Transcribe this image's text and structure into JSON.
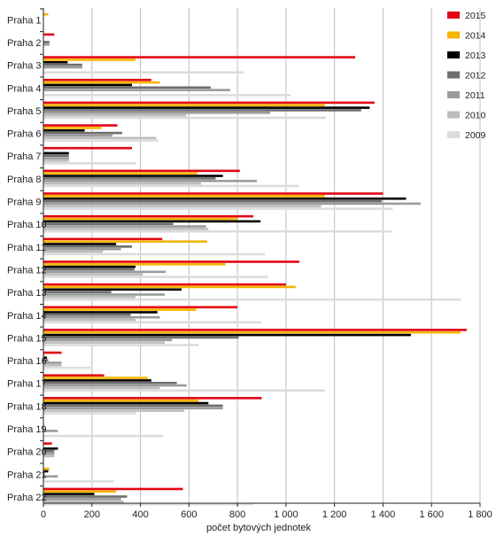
{
  "chart_data": {
    "type": "bar",
    "orientation": "horizontal",
    "title": "",
    "xlabel": "počet bytových jednotek",
    "ylabel": "",
    "xlim": [
      0,
      1800
    ],
    "xticks": [
      0,
      200,
      400,
      600,
      800,
      1000,
      1200,
      1400,
      1600,
      1800
    ],
    "xtick_labels": [
      "0",
      "200",
      "400",
      "600",
      "800",
      "1 000",
      "1 200",
      "1 400",
      "1 600",
      "1 800"
    ],
    "grid": "vertical",
    "legend_position": "top-right",
    "categories": [
      "Praha 1",
      "Praha 2",
      "Praha 3",
      "Praha 4",
      "Praha 5",
      "Praha 6",
      "Praha 7",
      "Praha 8",
      "Praha 9",
      "Praha 10",
      "Praha 11",
      "Praha 12",
      "Praha 13",
      "Praha 14",
      "Praha 15",
      "Praha 16",
      "Praha 17",
      "Praha 18",
      "Praha 19",
      "Praha 20",
      "Praha 21",
      "Praha 22"
    ],
    "series": [
      {
        "name": "2015",
        "color": "#e30613",
        "values": [
          0,
          45,
          1285,
          445,
          1365,
          305,
          365,
          810,
          1400,
          865,
          490,
          1055,
          1000,
          800,
          1745,
          75,
          250,
          900,
          0,
          35,
          0,
          575
        ]
      },
      {
        "name": "2014",
        "color": "#f7b500",
        "values": [
          20,
          0,
          380,
          480,
          1160,
          240,
          0,
          635,
          1160,
          800,
          675,
          750,
          1040,
          630,
          1720,
          5,
          430,
          640,
          0,
          0,
          25,
          300
        ]
      },
      {
        "name": "2013",
        "color": "#000000",
        "values": [
          0,
          0,
          100,
          365,
          1345,
          170,
          105,
          740,
          1495,
          895,
          300,
          380,
          570,
          470,
          1515,
          15,
          445,
          680,
          0,
          60,
          20,
          210
        ]
      },
      {
        "name": "2012",
        "color": "#6e6e6e",
        "values": [
          0,
          25,
          160,
          690,
          1310,
          325,
          105,
          710,
          1395,
          535,
          365,
          375,
          280,
          360,
          805,
          20,
          550,
          740,
          0,
          45,
          0,
          345
        ]
      },
      {
        "name": "2011",
        "color": "#9b9b9b",
        "values": [
          0,
          25,
          160,
          770,
          935,
          285,
          105,
          880,
          1555,
          670,
          320,
          505,
          500,
          480,
          530,
          75,
          590,
          740,
          60,
          45,
          60,
          320
        ]
      },
      {
        "name": "2010",
        "color": "#bdbdbd",
        "values": [
          0,
          0,
          0,
          0,
          590,
          465,
          105,
          650,
          1145,
          680,
          245,
          410,
          380,
          380,
          500,
          75,
          480,
          580,
          0,
          45,
          0,
          330
        ]
      },
      {
        "name": "2009",
        "color": "#dcdcdc",
        "values": [
          0,
          0,
          825,
          1020,
          1165,
          475,
          380,
          1055,
          1440,
          1435,
          915,
          925,
          1720,
          900,
          640,
          195,
          1160,
          380,
          495,
          0,
          290,
          865
        ]
      }
    ]
  }
}
